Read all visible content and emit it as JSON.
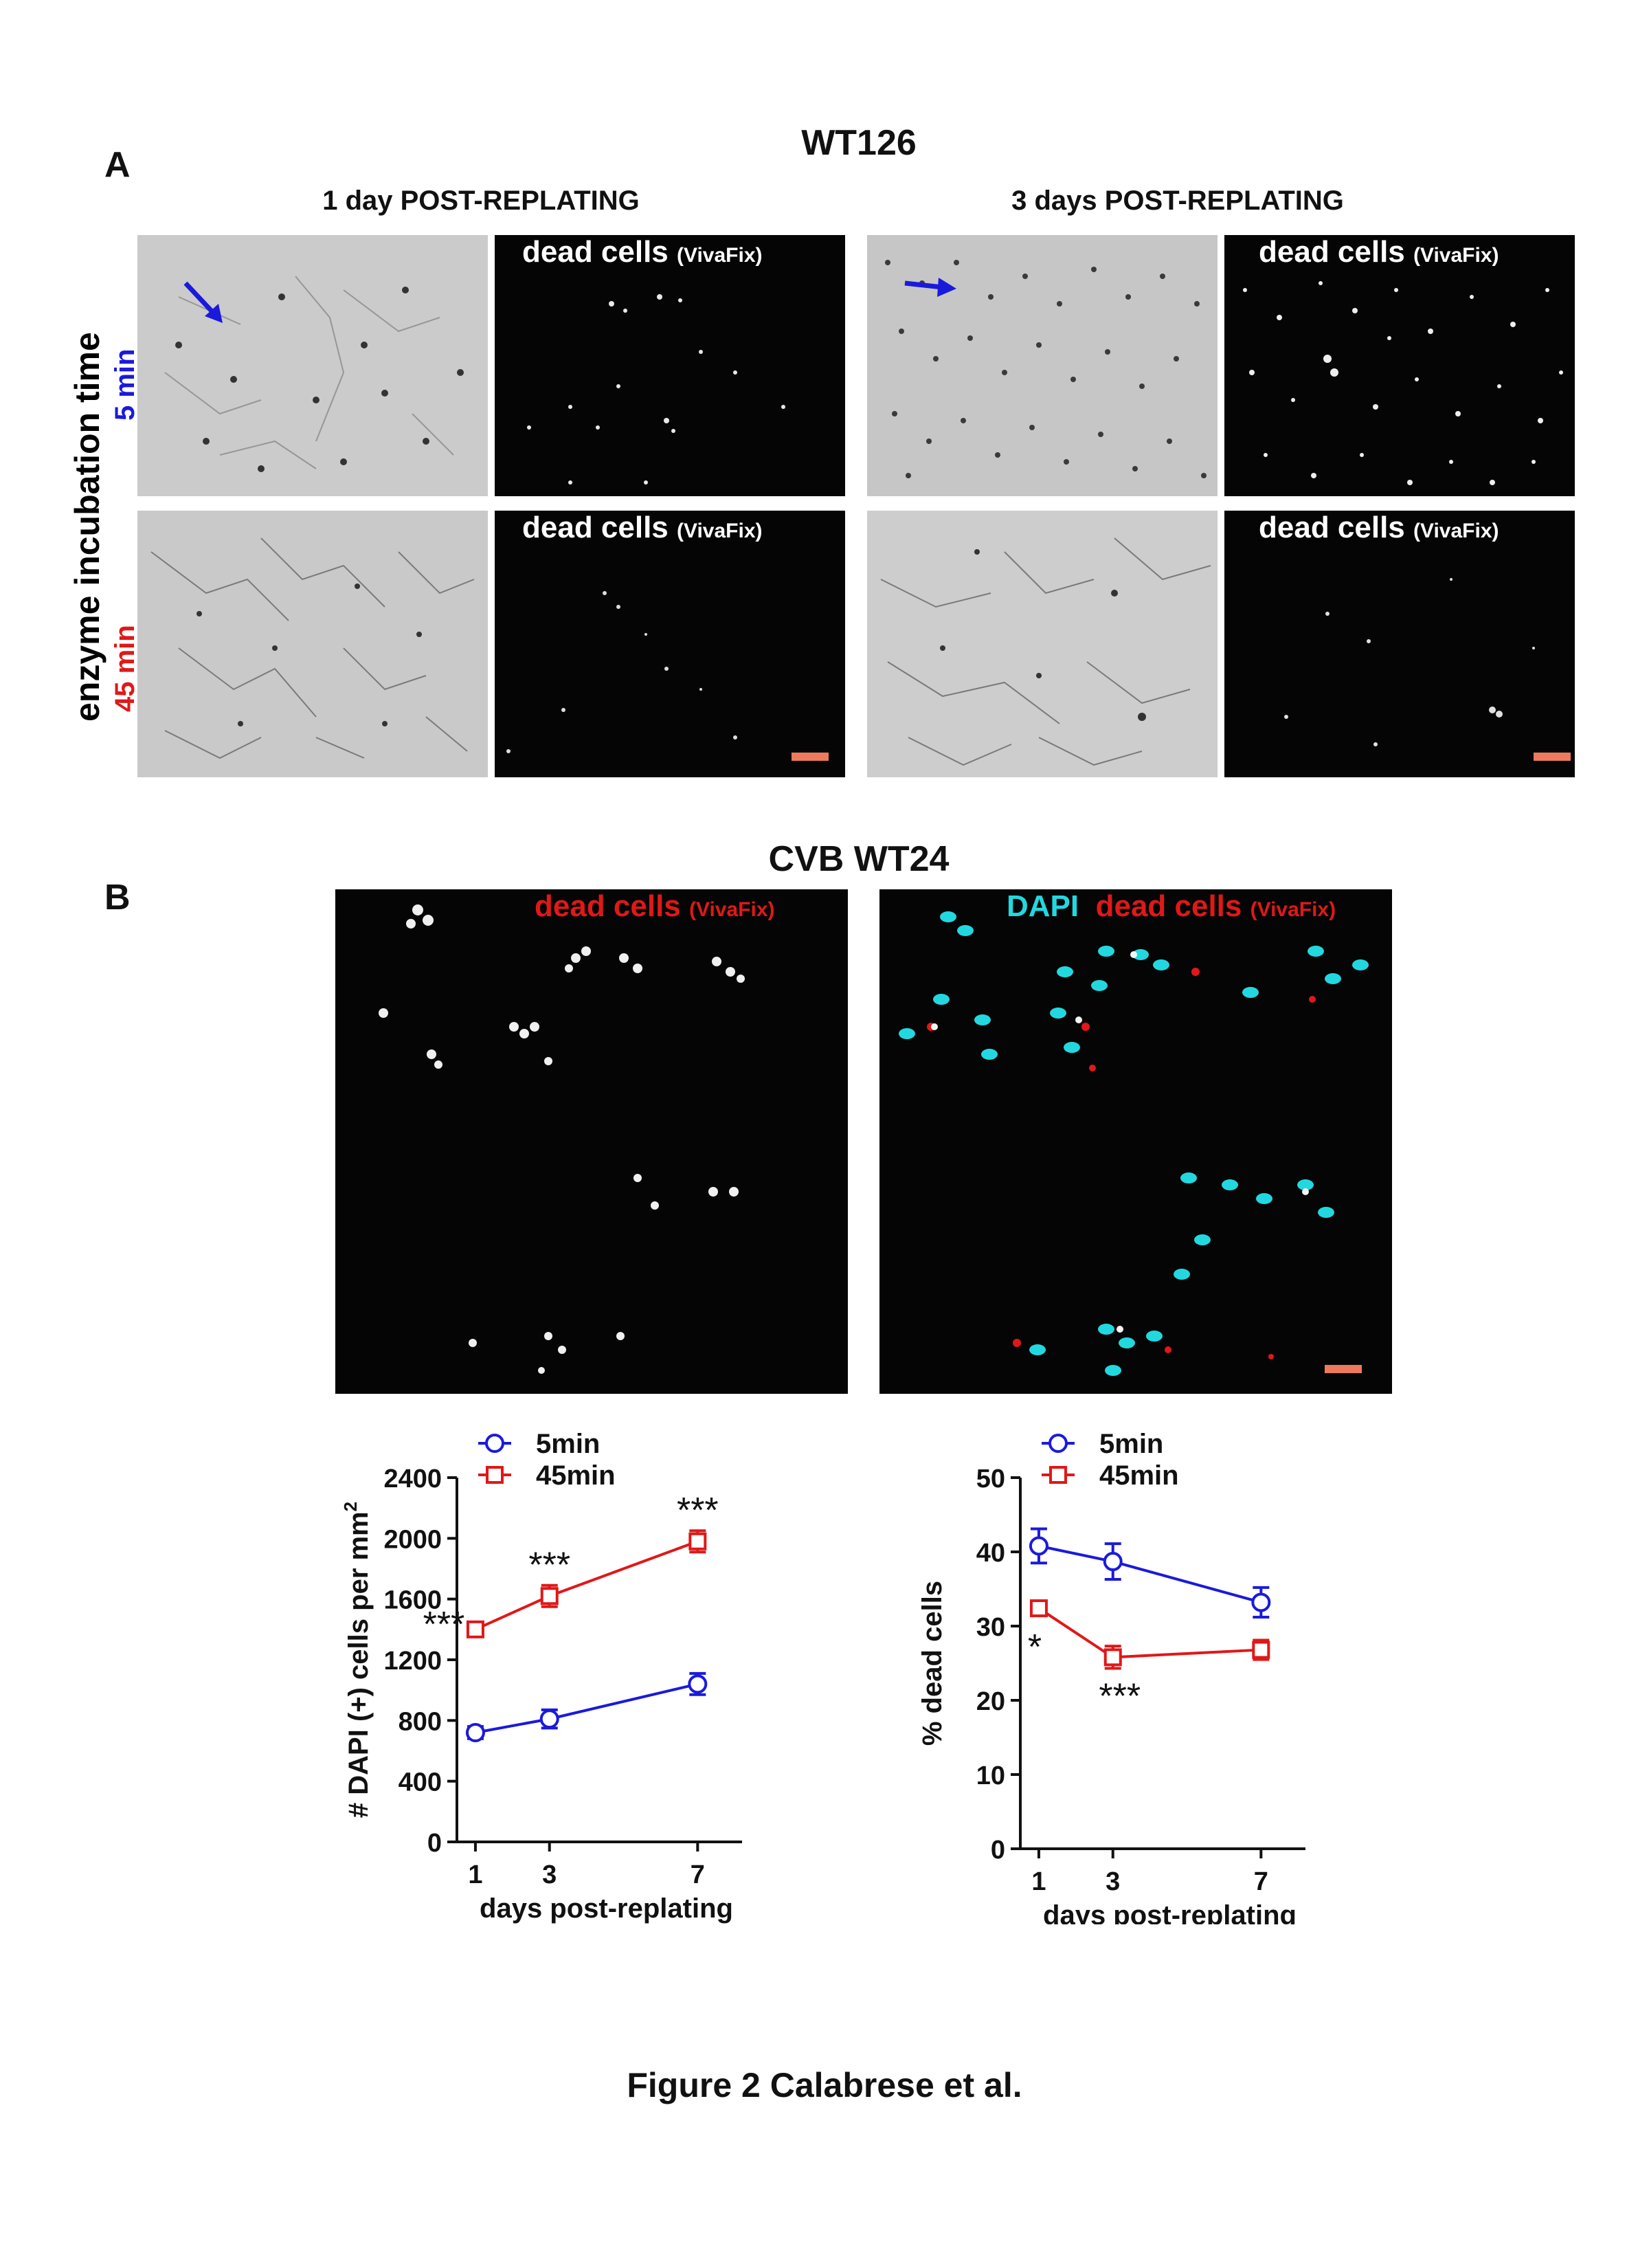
{
  "panel_a": {
    "letter": "A",
    "title": "WT126",
    "col_left": "1 day POST-REPLATING",
    "col_right": "3 days POST-REPLATING",
    "row_axis_label": "enzyme incubation time",
    "row1_label": "5 min",
    "row2_label": "45 min",
    "dead_label": "dead cells",
    "dead_sub": "(VivaFix)",
    "colors": {
      "row1": "#1a1adc",
      "row2": "#e01818",
      "arrow": "#1a1adc",
      "scalebar": "#ee7a5c"
    }
  },
  "panel_b": {
    "letter": "B",
    "title": "CVB WT24",
    "left_label": "dead cells",
    "left_sub": "(VivaFix)",
    "right_label_dapi": "DAPI",
    "right_label_dead": "dead cells",
    "right_sub": "(VivaFix)",
    "colors": {
      "dapi": "#22d8e0",
      "dead": "#e01818"
    }
  },
  "chart_data": [
    {
      "type": "line",
      "ylabel_main": "# DAPI (+) cells per mm",
      "ylabel_sup": "2",
      "xlabel": "days post-replating",
      "x": [
        1,
        3,
        7
      ],
      "xticks": [
        "1",
        "3",
        "7"
      ],
      "ylim": [
        0,
        2400
      ],
      "yticks": [
        "0",
        "400",
        "800",
        "1200",
        "1600",
        "2000",
        "2400"
      ],
      "series": [
        {
          "name": "5min",
          "color": "#1a1adc",
          "marker": "circle",
          "values": [
            720,
            810,
            1040
          ],
          "errors": [
            40,
            60,
            70
          ]
        },
        {
          "name": "45min",
          "color": "#e01818",
          "marker": "square",
          "values": [
            1400,
            1620,
            1980
          ],
          "errors": [
            30,
            70,
            70
          ]
        }
      ],
      "annotations": [
        {
          "text": "***",
          "x": 1,
          "y": 1400
        },
        {
          "text": "***",
          "x": 3,
          "y": 1620
        },
        {
          "text": "***",
          "x": 7,
          "y": 1980
        }
      ]
    },
    {
      "type": "line",
      "ylabel_main": "% dead cells",
      "xlabel": "days post-replating",
      "x": [
        1,
        3,
        7
      ],
      "xticks": [
        "1",
        "3",
        "7"
      ],
      "ylim": [
        0,
        50
      ],
      "yticks": [
        "0",
        "10",
        "20",
        "30",
        "40",
        "50"
      ],
      "series": [
        {
          "name": "5min",
          "color": "#1a1adc",
          "marker": "circle",
          "values": [
            40.8,
            38.7,
            33.2
          ],
          "errors": [
            2.3,
            2.4,
            2.0
          ]
        },
        {
          "name": "45min",
          "color": "#e01818",
          "marker": "square",
          "values": [
            32.4,
            25.8,
            26.8
          ],
          "errors": [
            0.8,
            1.5,
            1.3
          ]
        }
      ],
      "annotations": [
        {
          "text": "*",
          "x": 1,
          "y": 32.4
        },
        {
          "text": "***",
          "x": 3,
          "y": 25.8
        }
      ]
    }
  ],
  "caption": "Figure 2 Calabrese et al."
}
